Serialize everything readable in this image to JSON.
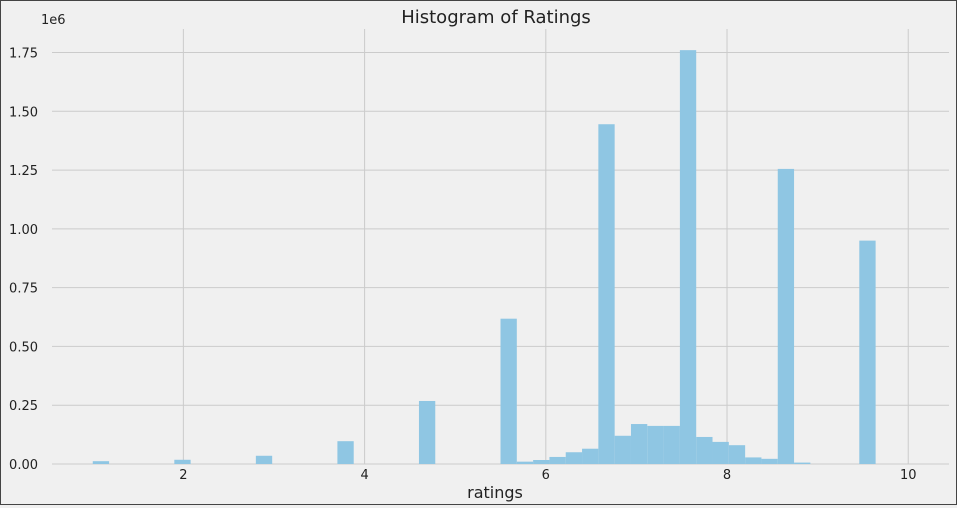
{
  "chart_data": {
    "type": "bar",
    "title": "Histogram of Ratings",
    "xlabel": "ratings",
    "ylabel": "",
    "y_offset_label": "1e6",
    "xlim": [
      0.55,
      10.45
    ],
    "ylim": [
      0,
      1.85
    ],
    "x_ticks": [
      2,
      4,
      6,
      8,
      10
    ],
    "x_tick_labels": [
      "2",
      "4",
      "6",
      "8",
      "10"
    ],
    "y_ticks": [
      0,
      0.25,
      0.5,
      0.75,
      1.0,
      1.25,
      1.5,
      1.75
    ],
    "y_tick_labels": [
      "0.00",
      "0.25",
      "0.50",
      "0.75",
      "1.00",
      "1.25",
      "1.50",
      "1.75"
    ],
    "grid": true,
    "bar_color": "#8fc6e3",
    "bins": {
      "start": 1.0,
      "width": 0.18,
      "counts": [
        0.012,
        0,
        0,
        0,
        0,
        0.018,
        0,
        0,
        0,
        0,
        0.035,
        0,
        0,
        0,
        0,
        0.097,
        0,
        0,
        0,
        0,
        0.268,
        0,
        0,
        0,
        0,
        0.618,
        0.01,
        0.017,
        0.03,
        0.05,
        0.065,
        1.445,
        0.12,
        0.17,
        0.162,
        0.162,
        1.76,
        0.115,
        0.094,
        0.08,
        0.028,
        0.022,
        1.255,
        0.006,
        0,
        0,
        0,
        0.95
      ]
    }
  }
}
